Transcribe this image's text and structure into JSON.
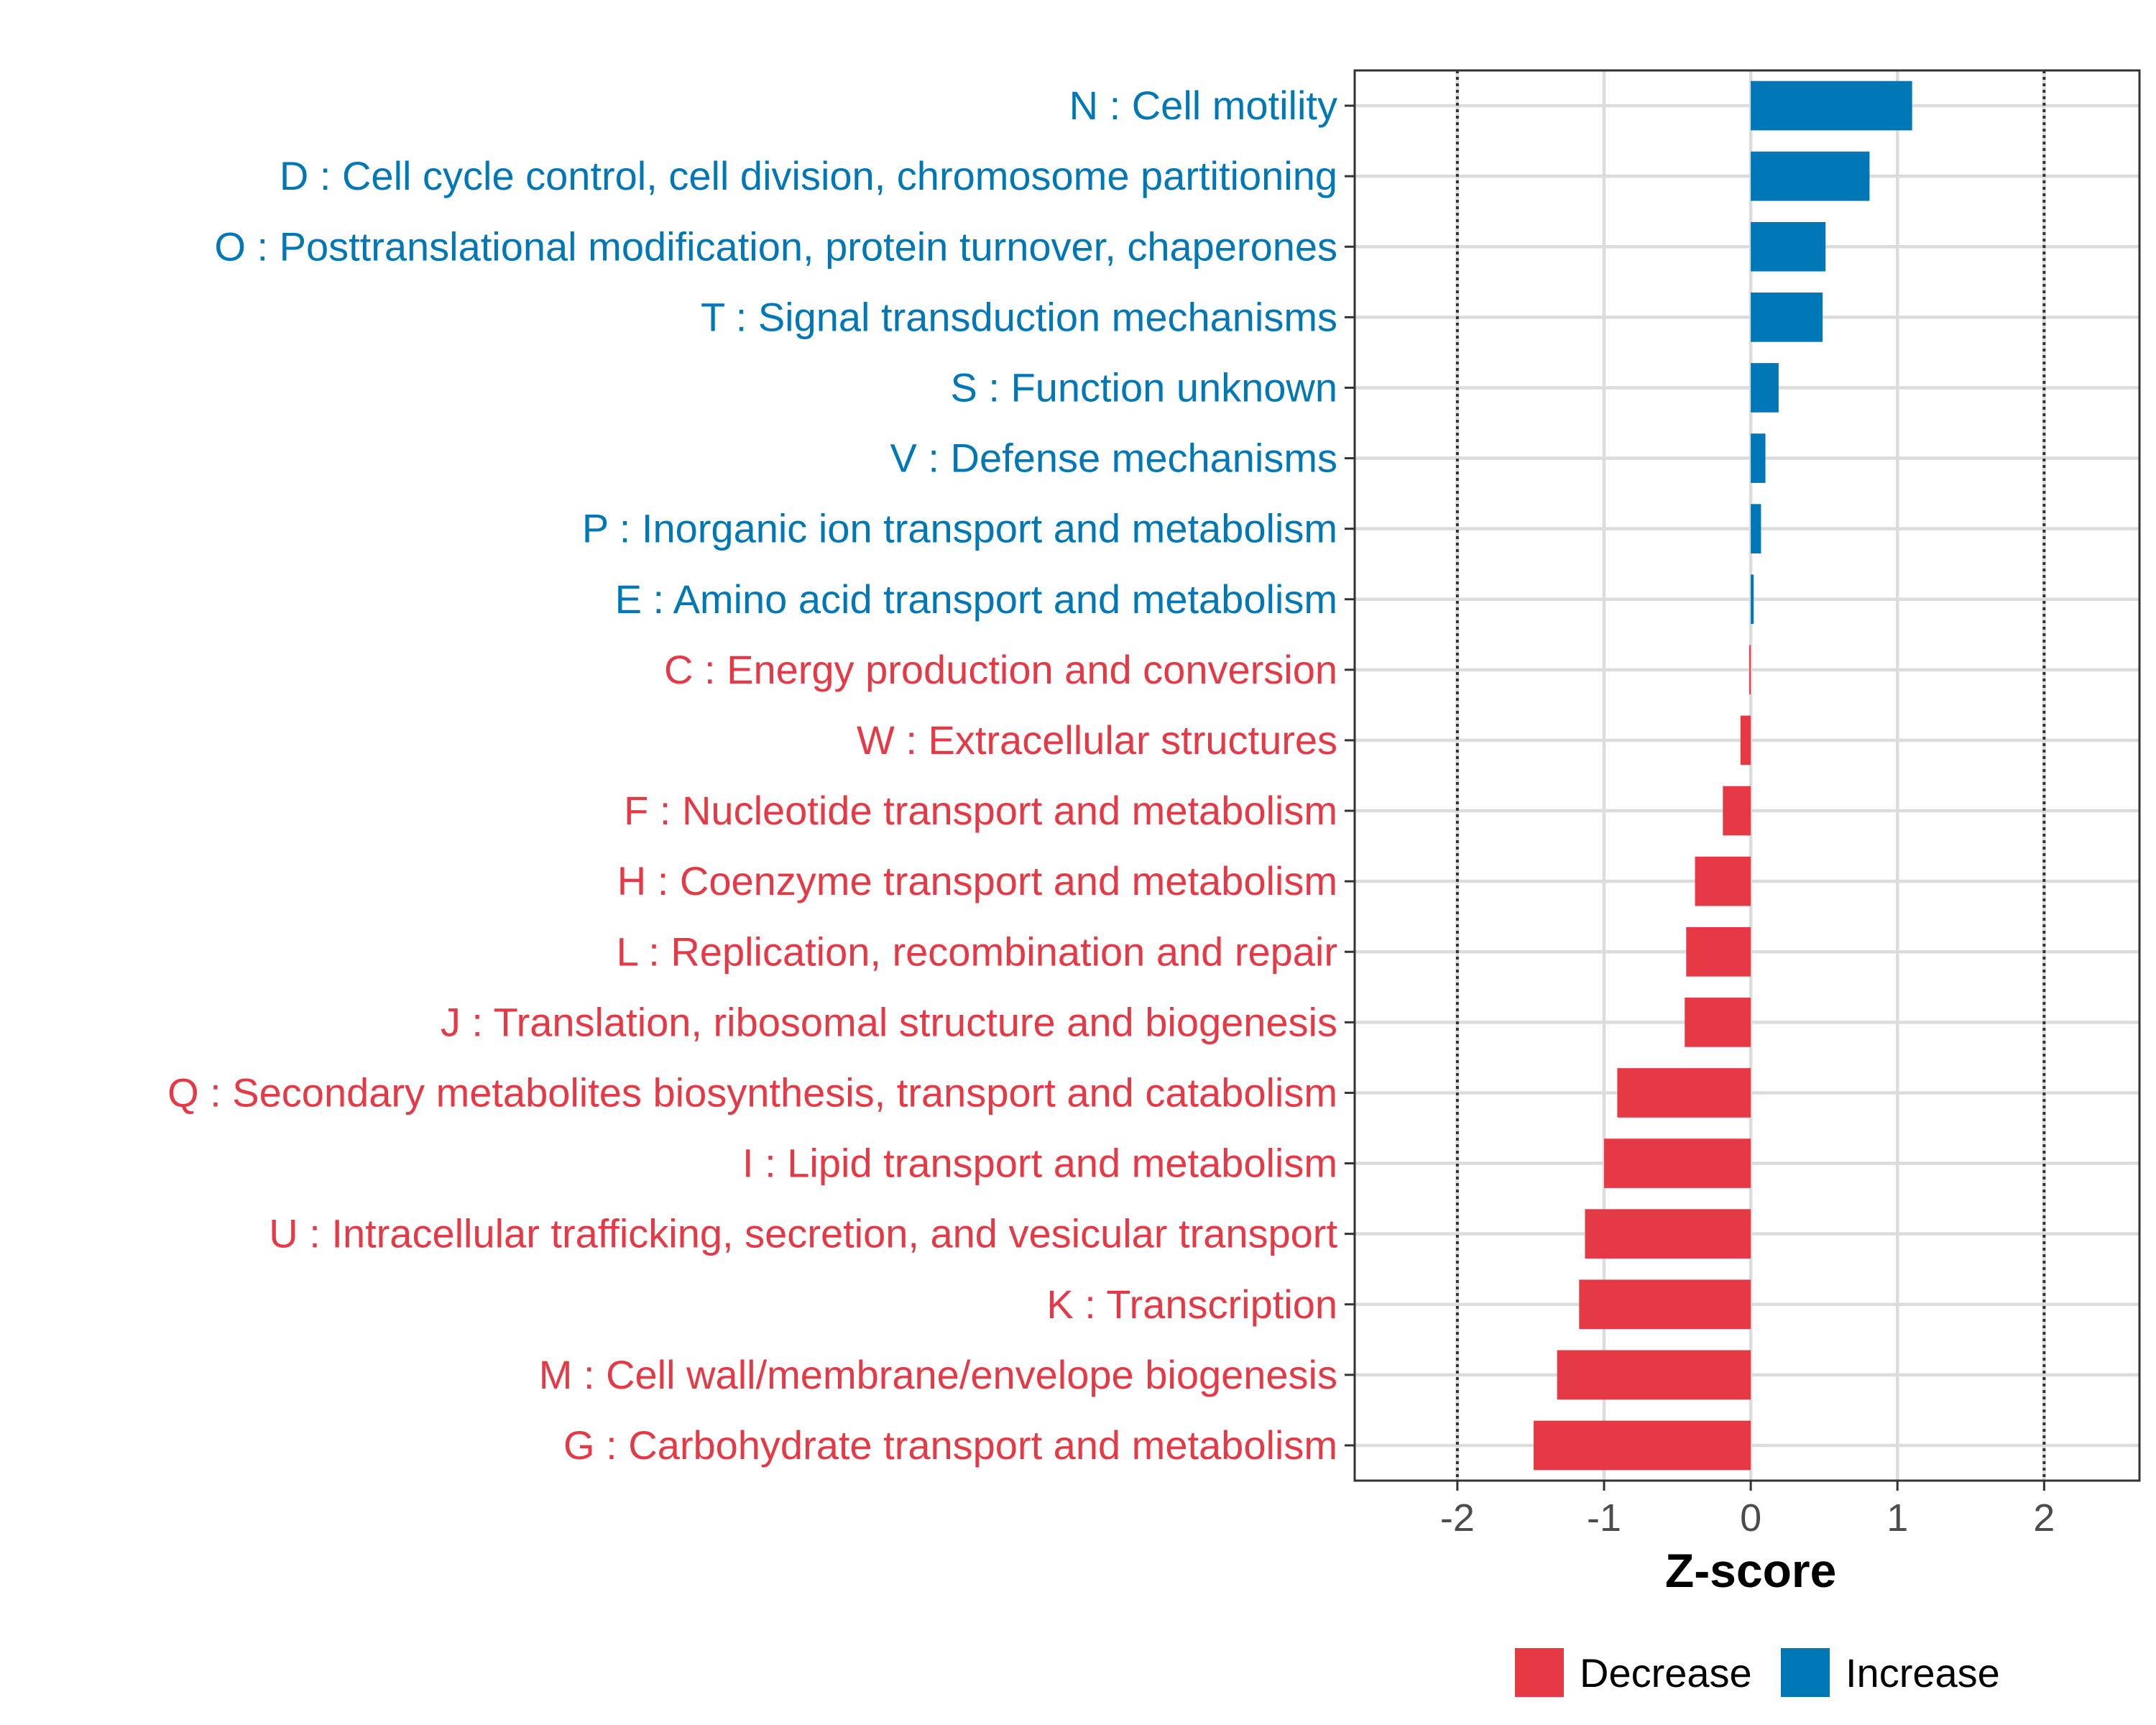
{
  "chart_data": {
    "type": "bar",
    "orientation": "horizontal",
    "title": "",
    "xlabel": "Z-score",
    "ylabel": "",
    "xlim": [
      -2.7,
      2.65
    ],
    "xticks": [
      -2,
      -1,
      0,
      1,
      2
    ],
    "xtick_labels": [
      "-2",
      "-1",
      "0",
      "1",
      "2"
    ],
    "reference_lines": [
      -2,
      2
    ],
    "grid": true,
    "legend_position": "bottom",
    "series_colors": {
      "Decrease": "#e63946",
      "Increase": "#0077b6"
    },
    "legend": [
      {
        "name": "Decrease",
        "label": "Decrease"
      },
      {
        "name": "Increase",
        "label": "Increase"
      }
    ],
    "categories": [
      "N : Cell motility",
      "D : Cell cycle control, cell division, chromosome partitioning",
      "O : Posttranslational modification, protein turnover, chaperones",
      "T : Signal transduction mechanisms",
      "S : Function unknown",
      "V : Defense mechanisms",
      "P : Inorganic ion transport and metabolism",
      "E : Amino acid transport and metabolism",
      "C : Energy production and conversion",
      "W : Extracellular structures",
      "F : Nucleotide transport and metabolism",
      "H : Coenzyme transport and metabolism",
      "L : Replication, recombination and repair",
      "J : Translation, ribosomal structure and biogenesis",
      "Q : Secondary metabolites biosynthesis, transport and catabolism",
      "I : Lipid transport and metabolism",
      "U : Intracellular trafficking, secretion, and vesicular transport",
      "K : Transcription",
      "M : Cell wall/membrane/envelope biogenesis",
      "G : Carbohydrate transport and metabolism"
    ],
    "values": [
      1.1,
      0.81,
      0.51,
      0.49,
      0.19,
      0.1,
      0.07,
      0.02,
      -0.01,
      -0.07,
      -0.19,
      -0.38,
      -0.44,
      -0.45,
      -0.91,
      -1.0,
      -1.13,
      -1.17,
      -1.32,
      -1.48
    ],
    "groups": [
      "Increase",
      "Increase",
      "Increase",
      "Increase",
      "Increase",
      "Increase",
      "Increase",
      "Increase",
      "Decrease",
      "Decrease",
      "Decrease",
      "Decrease",
      "Decrease",
      "Decrease",
      "Decrease",
      "Decrease",
      "Decrease",
      "Decrease",
      "Decrease",
      "Decrease"
    ]
  }
}
